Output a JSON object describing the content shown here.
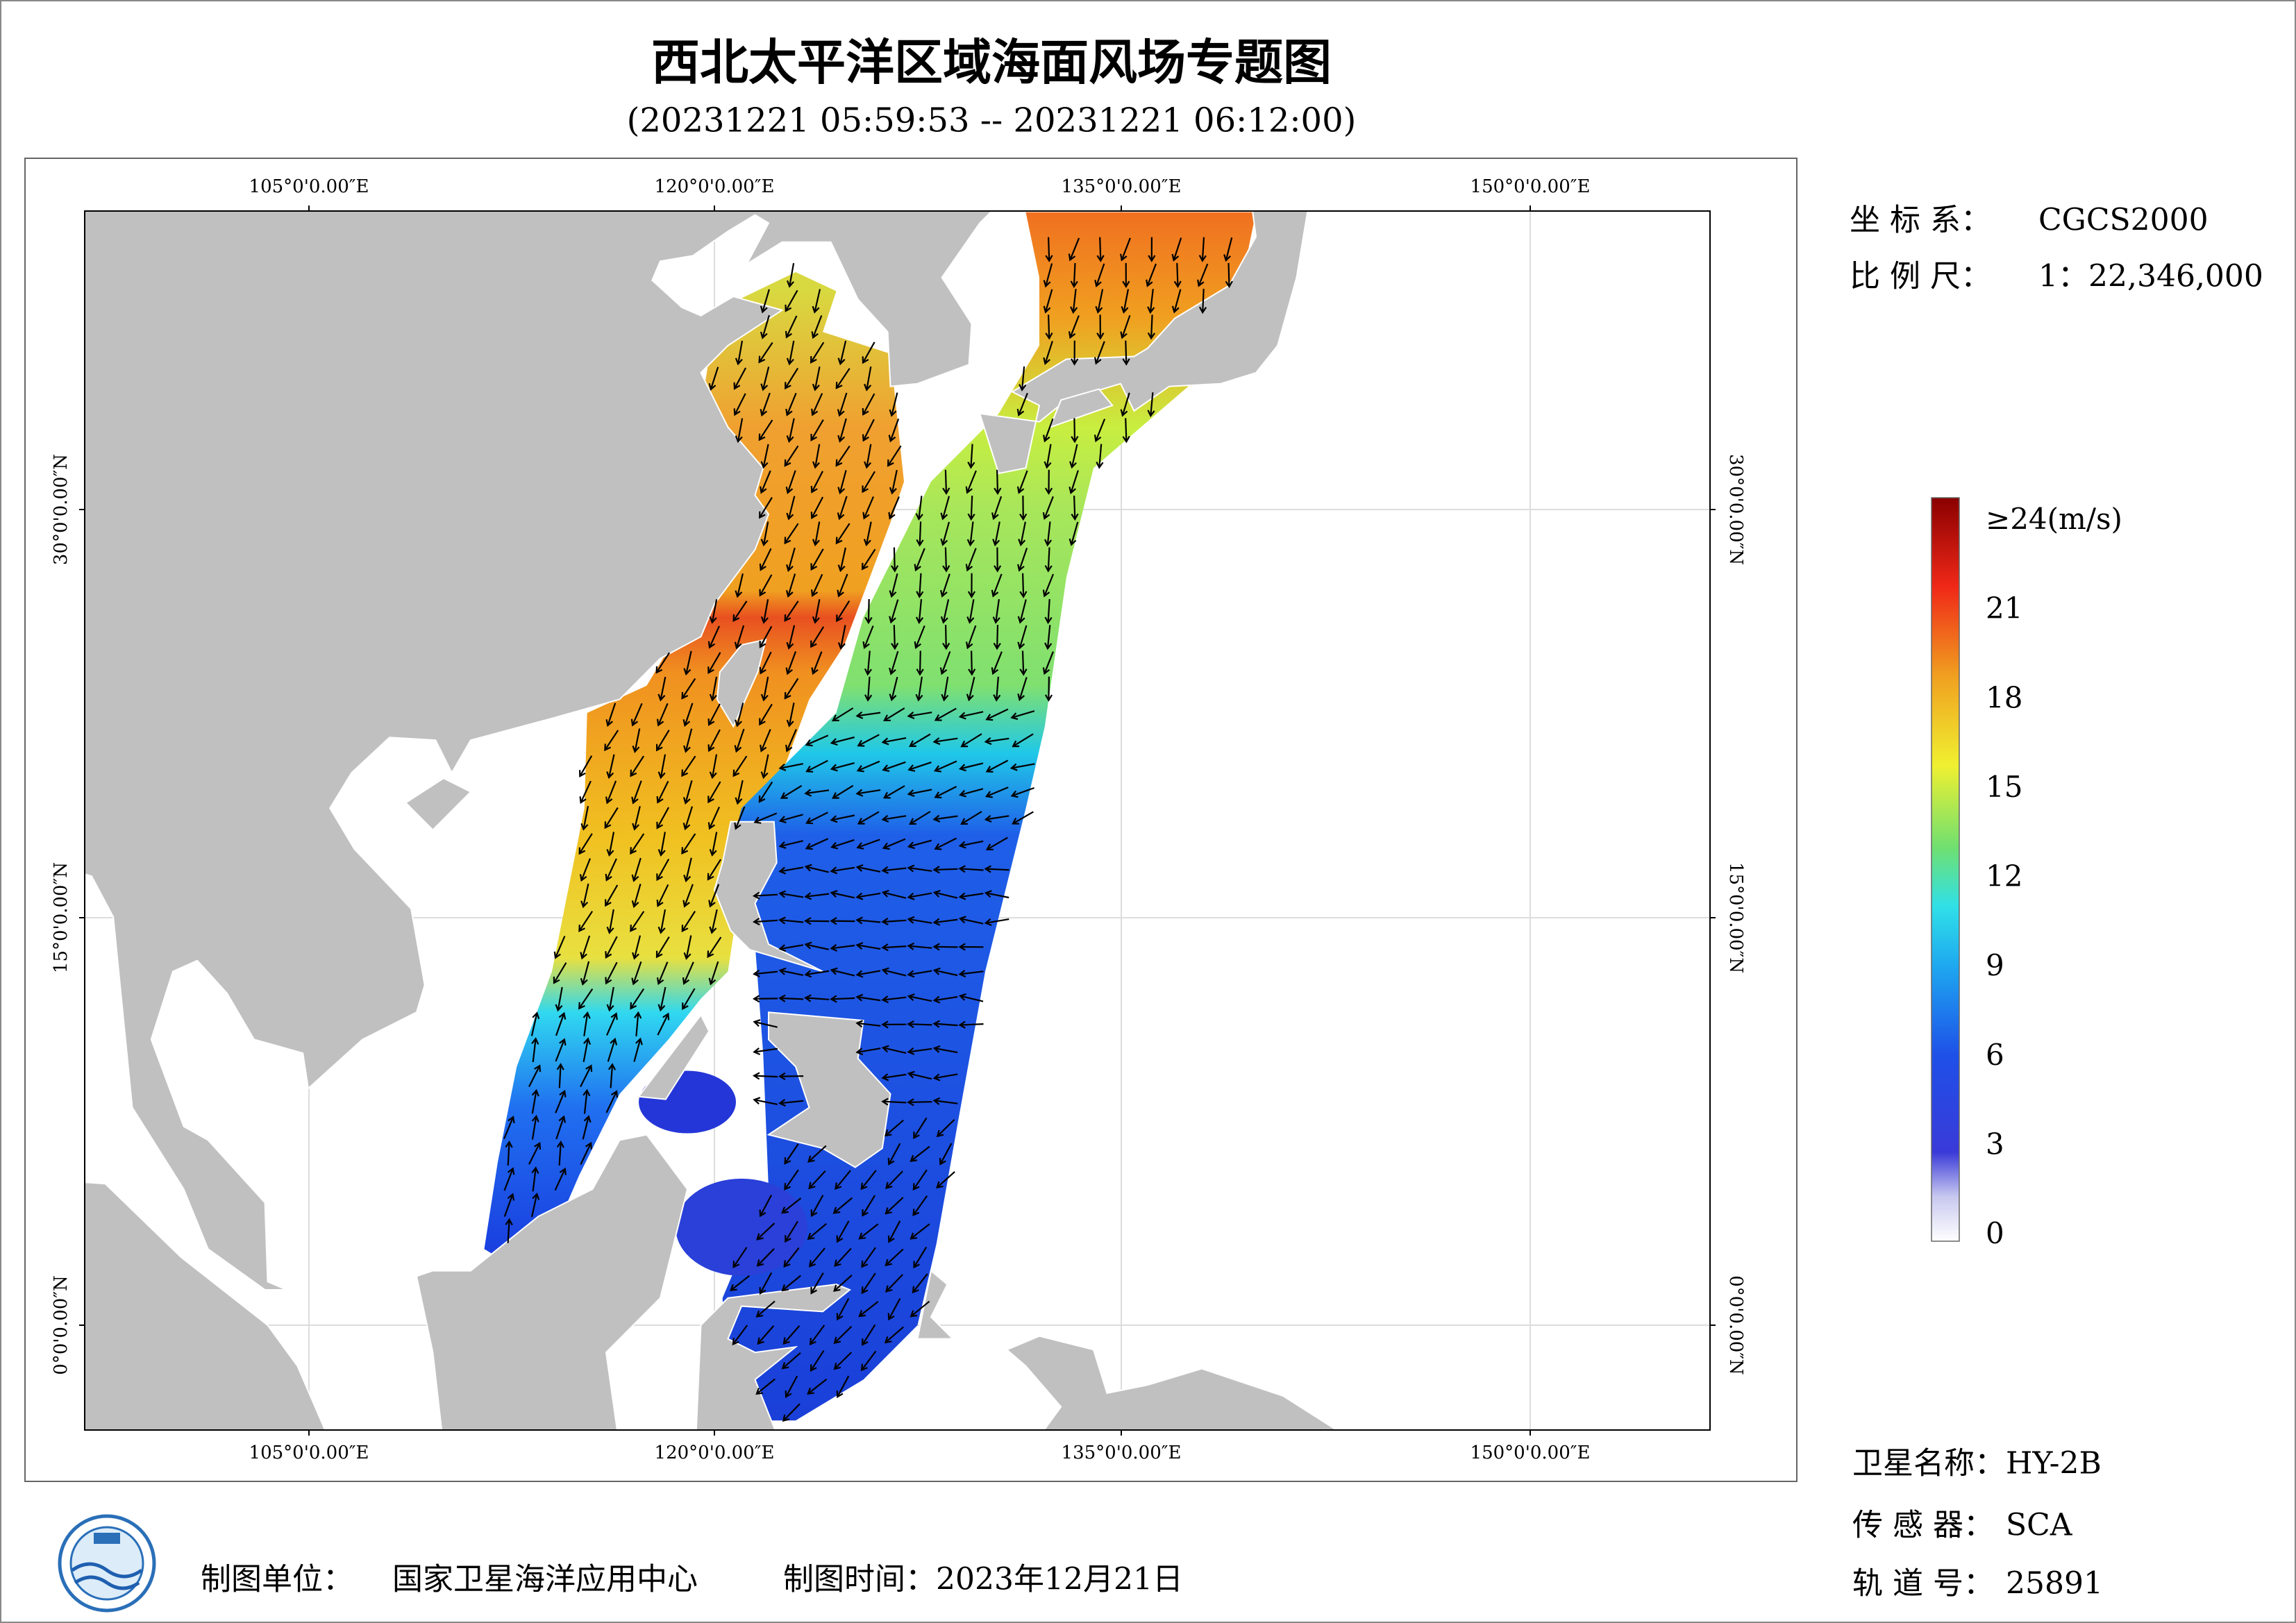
{
  "title": "西北太平洋区域海面风场专题图",
  "subtitle": "(20231221 05:59:53 -- 20231221 06:12:00)",
  "map": {
    "longitude_labels": [
      "105°0'0.00″E",
      "120°0'0.00″E",
      "135°0'0.00″E",
      "150°0'0.00″E"
    ],
    "latitude_labels": [
      "30°0'0.00″N",
      "15°0'0.00″N",
      "0°0'0.00″N"
    ]
  },
  "info": {
    "coordinate_system": {
      "label": "坐 标 系：",
      "value": "CGCS2000"
    },
    "scale": {
      "label": "比 例 尺：",
      "value": "1：22,346,000"
    }
  },
  "legend": {
    "labels": [
      {
        "value": 24,
        "label": "≥24(m/s)"
      },
      21,
      18,
      15,
      12,
      9,
      6,
      3,
      0
    ]
  },
  "satellite": {
    "name": {
      "label": "卫星名称：",
      "value": "HY-2B"
    },
    "sensor": {
      "label": "传 感 器：",
      "value": "SCA"
    },
    "orbit": {
      "label": "轨 道 号：",
      "value": "25891"
    }
  },
  "footer": {
    "unit_label": "制图单位：",
    "unit": "国家卫星海洋应用中心",
    "time": "制图时间：2023年12月21日"
  }
}
